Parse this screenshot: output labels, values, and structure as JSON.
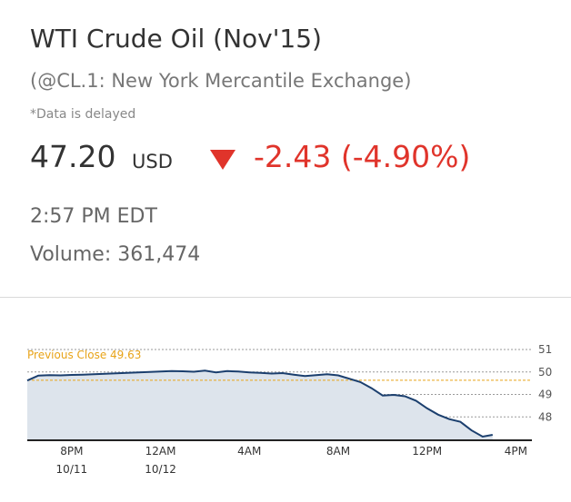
{
  "quote": {
    "title": "WTI Crude Oil (Nov'15)",
    "subtitle": "(@CL.1: New York Mercantile Exchange)",
    "delayed_note": "*Data is delayed",
    "price": "47.20",
    "currency": "USD",
    "change": "-2.43 (-4.90%)",
    "time": "2:57 PM EDT",
    "volume": "Volume: 361,474"
  },
  "icons": {
    "change_direction": "down-triangle-icon"
  },
  "colors": {
    "negative": "#e0342b",
    "previous_close": "#e8a317",
    "line": "#1b3f6e",
    "fill": "#dde4ec"
  },
  "chart_data": {
    "type": "area",
    "previous_close_label": "Previous Close 49.63",
    "previous_close": 49.63,
    "ylim": [
      47.0,
      51.0
    ],
    "y_ticks": [
      "51",
      "50",
      "49",
      "48"
    ],
    "x_ticks": [
      {
        "line1": "8PM",
        "line2": "10/11"
      },
      {
        "line1": "12AM",
        "line2": "10/12"
      },
      {
        "line1": "4AM",
        "line2": ""
      },
      {
        "line1": "8AM",
        "line2": ""
      },
      {
        "line1": "12PM",
        "line2": ""
      },
      {
        "line1": "4PM",
        "line2": ""
      }
    ],
    "x_hours": [
      -6,
      -5.5,
      -5,
      -4.5,
      -4,
      -3.5,
      -3,
      -2.5,
      -2,
      -1.5,
      -1,
      -0.5,
      0,
      0.5,
      1,
      1.5,
      2,
      2.5,
      3,
      3.5,
      4,
      4.5,
      5,
      5.5,
      6,
      6.5,
      7,
      7.5,
      8,
      8.5,
      9,
      9.5,
      10,
      10.5,
      11,
      11.5,
      12,
      12.5,
      13,
      13.5,
      14,
      14.5,
      14.95
    ],
    "values": [
      49.62,
      49.84,
      49.86,
      49.85,
      49.87,
      49.88,
      49.9,
      49.92,
      49.94,
      49.96,
      49.98,
      50.0,
      50.02,
      50.04,
      50.03,
      50.01,
      50.06,
      49.98,
      50.04,
      50.02,
      49.98,
      49.96,
      49.93,
      49.95,
      49.88,
      49.82,
      49.86,
      49.9,
      49.85,
      49.7,
      49.55,
      49.28,
      48.95,
      48.98,
      48.92,
      48.72,
      48.38,
      48.1,
      47.9,
      47.78,
      47.4,
      47.12,
      47.2
    ]
  }
}
